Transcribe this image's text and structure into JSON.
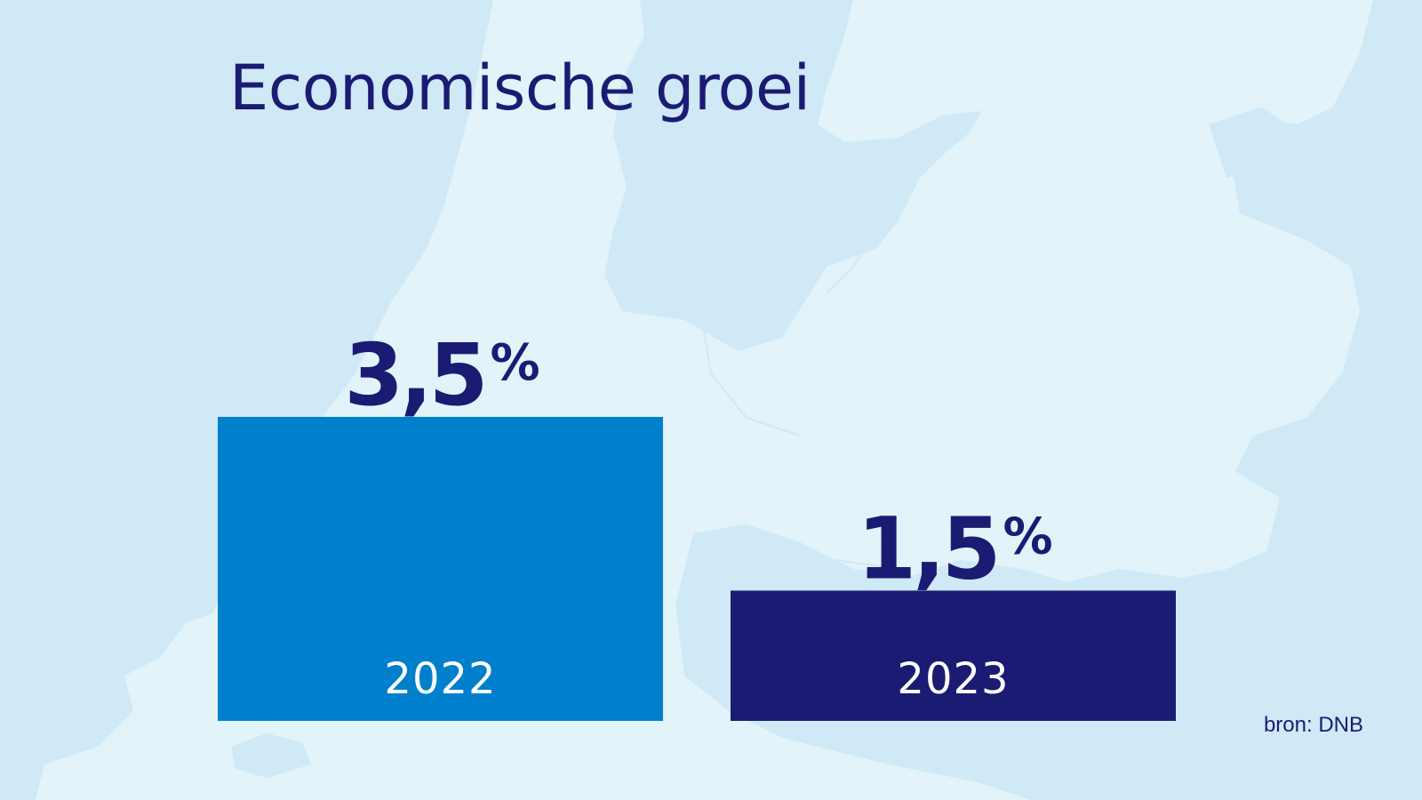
{
  "title": "Economische groei",
  "source": "bron: DNB",
  "colors": {
    "background": "#cfe9f6",
    "land": "#e2f3fa",
    "title_text": "#1b1b73"
  },
  "chart_data": {
    "type": "bar",
    "title": "Economische groei",
    "categories": [
      "2022",
      "2023"
    ],
    "values": [
      3.5,
      1.5
    ],
    "value_labels": [
      "3,5%",
      "1,5%"
    ],
    "unit": "%",
    "colors": [
      "#0080cc",
      "#1b1b73"
    ],
    "xlabel": "",
    "ylabel": "",
    "ylim": [
      0,
      3.5
    ],
    "grid": false,
    "legend": "none"
  }
}
